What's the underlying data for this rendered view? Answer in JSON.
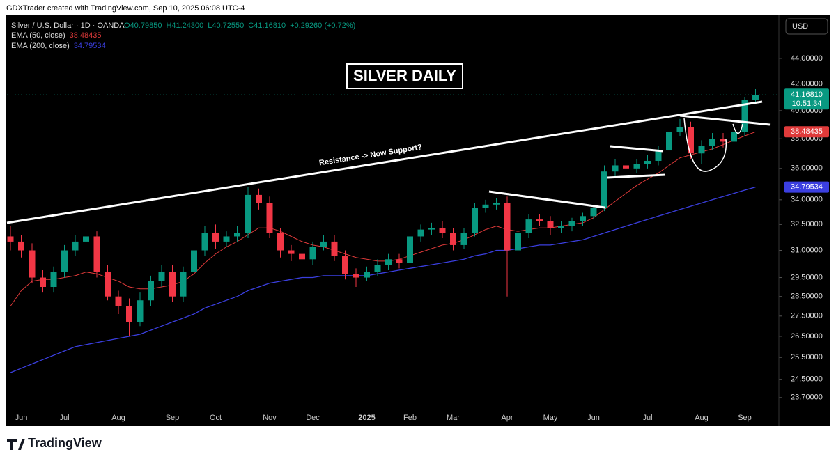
{
  "header": {
    "credit": "GDXTrader created with TradingView.com, Sep 10, 2025 06:08 UTC-4",
    "symbol": "Silver / U.S. Dollar · 1D · OANDA",
    "ohlc": [
      "O40.79850",
      "H41.24300",
      "L40.72550",
      "C41.16810",
      "+0.29260 (+0.72%)"
    ],
    "currency": "USD",
    "brand": "TradingView"
  },
  "chart_data": {
    "type": "candlestick",
    "title": "SILVER DAILY",
    "annotation": "Resistance -> Now Support?",
    "log_scale": true,
    "up_color": "#089981",
    "down_color": "#f23645",
    "ylim": [
      23.13,
      47.6
    ],
    "yticks": [
      {
        "value": 23.7,
        "label": "23.70000"
      },
      {
        "value": 24.5,
        "label": "24.50000"
      },
      {
        "value": 25.5,
        "label": "25.50000"
      },
      {
        "value": 26.5,
        "label": "26.50000"
      },
      {
        "value": 27.5,
        "label": "27.50000"
      },
      {
        "value": 28.5,
        "label": "28.50000"
      },
      {
        "value": 29.5,
        "label": "29.50000"
      },
      {
        "value": 31,
        "label": "31.00000"
      },
      {
        "value": 32.5,
        "label": "32.50000"
      },
      {
        "value": 34,
        "label": "34.00000"
      },
      {
        "value": 36,
        "label": "36.00000"
      },
      {
        "value": 38,
        "label": "38.00000"
      },
      {
        "value": 40,
        "label": "40.00000"
      },
      {
        "value": 42,
        "label": "42.00000"
      },
      {
        "value": 44,
        "label": "44.00000"
      }
    ],
    "categories": [
      null,
      "Jun",
      null,
      null,
      null,
      "Jul",
      null,
      null,
      null,
      null,
      "Aug",
      null,
      null,
      null,
      null,
      "Sep",
      null,
      null,
      null,
      "Oct",
      null,
      null,
      null,
      null,
      "Nov",
      null,
      null,
      null,
      "Dec",
      null,
      null,
      null,
      null,
      "2025",
      null,
      null,
      null,
      "Feb",
      null,
      null,
      null,
      "Mar",
      null,
      null,
      null,
      null,
      "Apr",
      null,
      null,
      null,
      "May",
      null,
      null,
      null,
      "Jun",
      null,
      null,
      null,
      null,
      "Jul",
      null,
      null,
      null,
      null,
      "Aug",
      null,
      null,
      null,
      "Sep",
      null
    ],
    "open": [
      31.8,
      31.5,
      31.0,
      29.5,
      29.0,
      29.8,
      31.0,
      31.5,
      31.8,
      29.8,
      28.5,
      28.0,
      27.2,
      28.3,
      29.3,
      29.8,
      28.5,
      29.8,
      31.0,
      32.0,
      31.5,
      31.8,
      32.0,
      34.3,
      33.8,
      32.0,
      31.0,
      30.8,
      30.5,
      31.2,
      31.5,
      30.7,
      29.7,
      29.5,
      29.8,
      30.2,
      30.5,
      30.3,
      31.8,
      32.2,
      32.3,
      32.0,
      31.3,
      32.0,
      33.5,
      33.7,
      33.8,
      31.0,
      32.0,
      32.8,
      32.7,
      32.3,
      32.4,
      32.7,
      33.0,
      33.5,
      35.8,
      36.2,
      36.0,
      36.3,
      36.5,
      37.2,
      38.5,
      38.8,
      37.0,
      37.5,
      38.0,
      37.8,
      38.5,
      40.8
    ],
    "high": [
      32.4,
      31.9,
      31.4,
      29.9,
      30.1,
      31.3,
      31.9,
      32.3,
      32.1,
      30.2,
      28.8,
      28.4,
      28.7,
      29.6,
      30.2,
      30.2,
      30.1,
      31.3,
      32.4,
      32.5,
      32.1,
      32.4,
      34.8,
      34.7,
      34.2,
      32.3,
      31.3,
      31.2,
      31.5,
      31.9,
      31.9,
      31.0,
      30.0,
      30.1,
      30.5,
      30.8,
      30.8,
      32.1,
      32.5,
      32.6,
      32.7,
      32.3,
      32.3,
      33.8,
      34.0,
      34.1,
      34.2,
      32.3,
      33.1,
      33.1,
      33.0,
      32.7,
      32.9,
      33.2,
      33.6,
      36.2,
      36.6,
      36.5,
      36.6,
      36.9,
      37.5,
      38.8,
      39.4,
      39.2,
      37.9,
      38.4,
      38.4,
      38.8,
      41.0,
      41.6
    ],
    "low": [
      31.0,
      30.6,
      29.2,
      28.7,
      28.7,
      29.5,
      30.7,
      31.2,
      29.5,
      28.3,
      27.6,
      26.5,
      27.0,
      28.0,
      29.0,
      28.2,
      28.2,
      29.5,
      30.7,
      31.1,
      31.2,
      31.5,
      31.7,
      33.4,
      31.7,
      30.6,
      30.4,
      30.2,
      30.2,
      31.0,
      30.4,
      29.4,
      29.0,
      29.3,
      29.6,
      29.9,
      30.0,
      30.1,
      31.5,
      31.9,
      31.7,
      31.0,
      31.1,
      31.8,
      33.2,
      33.4,
      28.5,
      30.6,
      31.7,
      32.4,
      31.9,
      32.0,
      32.1,
      32.4,
      32.8,
      33.3,
      35.5,
      35.6,
      35.7,
      36.0,
      36.2,
      36.9,
      38.2,
      36.6,
      36.3,
      37.2,
      37.4,
      37.5,
      38.2,
      40.6
    ],
    "close": [
      31.5,
      31.0,
      29.5,
      29.0,
      29.8,
      31.0,
      31.5,
      31.8,
      29.8,
      28.5,
      28.0,
      27.2,
      28.3,
      29.3,
      29.8,
      28.5,
      29.8,
      31.0,
      32.0,
      31.5,
      31.8,
      32.0,
      34.3,
      33.8,
      32.0,
      31.0,
      30.8,
      30.5,
      31.2,
      31.5,
      30.7,
      29.7,
      29.5,
      29.8,
      30.2,
      30.5,
      30.3,
      31.8,
      32.2,
      32.3,
      32.0,
      31.3,
      32.0,
      33.5,
      33.7,
      33.8,
      31.0,
      32.0,
      32.8,
      32.7,
      32.3,
      32.4,
      32.7,
      33.0,
      33.5,
      35.8,
      36.2,
      36.0,
      36.3,
      36.5,
      37.2,
      38.5,
      38.8,
      37.0,
      37.5,
      38.0,
      37.8,
      38.5,
      40.8,
      41.1681
    ],
    "series": [
      {
        "name": "EMA (50, close)",
        "value_label": "38.48435",
        "color": "#e03a3a",
        "values": [
          28.0,
          28.8,
          29.3,
          29.4,
          29.4,
          29.5,
          29.6,
          29.8,
          29.7,
          29.5,
          29.3,
          29.0,
          28.9,
          28.9,
          29.0,
          29.1,
          29.3,
          29.7,
          30.3,
          30.8,
          31.2,
          31.5,
          31.9,
          32.3,
          32.3,
          32.1,
          31.8,
          31.5,
          31.3,
          31.2,
          31.0,
          30.8,
          30.6,
          30.5,
          30.4,
          30.4,
          30.5,
          30.7,
          30.9,
          31.1,
          31.3,
          31.4,
          31.6,
          31.9,
          32.2,
          32.4,
          32.2,
          32.1,
          32.2,
          32.3,
          32.3,
          32.4,
          32.5,
          32.6,
          32.9,
          33.4,
          33.9,
          34.4,
          34.9,
          35.3,
          35.7,
          36.2,
          36.7,
          36.9,
          37.1,
          37.3,
          37.6,
          37.9,
          38.2,
          38.48435
        ]
      },
      {
        "name": "EMA (200, close)",
        "value_label": "34.79534",
        "color": "#3b3fe0",
        "values": [
          24.8,
          25.0,
          25.2,
          25.4,
          25.6,
          25.8,
          26.0,
          26.1,
          26.2,
          26.3,
          26.4,
          26.5,
          26.6,
          26.8,
          27.0,
          27.2,
          27.4,
          27.6,
          27.9,
          28.1,
          28.3,
          28.5,
          28.8,
          29.0,
          29.2,
          29.3,
          29.4,
          29.5,
          29.5,
          29.6,
          29.6,
          29.6,
          29.6,
          29.6,
          29.7,
          29.8,
          29.9,
          30.0,
          30.1,
          30.2,
          30.3,
          30.4,
          30.5,
          30.7,
          30.8,
          31.0,
          31.0,
          31.1,
          31.2,
          31.3,
          31.3,
          31.4,
          31.5,
          31.6,
          31.8,
          32.0,
          32.2,
          32.4,
          32.6,
          32.8,
          33.0,
          33.2,
          33.4,
          33.6,
          33.8,
          34.0,
          34.2,
          34.4,
          34.6,
          34.79534
        ]
      }
    ],
    "last_price": {
      "value": 41.1681,
      "label": "41.16810",
      "countdown": "10:51:34"
    }
  }
}
